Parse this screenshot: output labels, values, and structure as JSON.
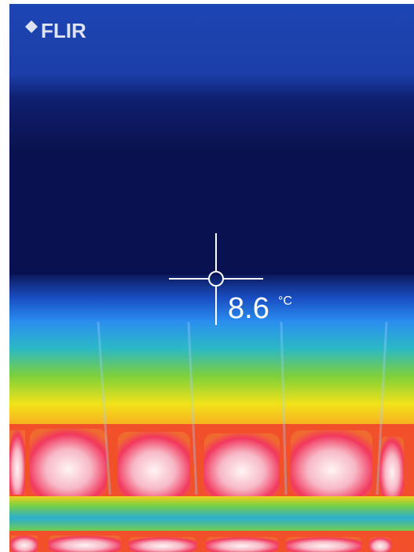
{
  "logo": "FLIR",
  "measurement": {
    "value": 8.6,
    "unit": "°C"
  }
}
